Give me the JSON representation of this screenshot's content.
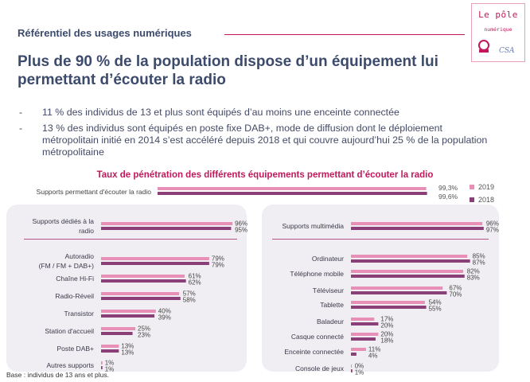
{
  "header": {
    "section": "Référentiel des usages numériques",
    "headline": "Plus de 90 % de la population dispose d’un équipement lui permettant d’écouter la radio"
  },
  "logo": {
    "title": "Le pôle",
    "subtitle": "numérique",
    "partner_a": "arcep",
    "partner_b": "CSA"
  },
  "bullets": [
    "11 % des individus de 13 et plus sont équipés d’au moins une enceinte connectée",
    "13 % des individus sont équipés en poste fixe DAB+, mode de diffusion dont le déploiement métropolitain initié en 2014 s’est accéléré depuis 2018 et qui couvre aujourd’hui 25 % de la population métropolitaine"
  ],
  "footnote": "Base : individus de 13 ans et plus.",
  "colors": {
    "y2019": "#e88fb8",
    "y2018": "#8b3f79",
    "accent": "#c2185b",
    "panel": "#f0eef2"
  },
  "chart_data": {
    "type": "bar",
    "orientation": "horizontal",
    "title": "Taux de pénétration des différents équipements permettant d’écouter la radio",
    "legend": [
      "2019",
      "2018"
    ],
    "series_names": [
      "2019",
      "2018"
    ],
    "top": {
      "label": "Supports permettant d'écouter la radio",
      "v2019": 99.3,
      "v2018": 99.6,
      "t2019": "99,3%",
      "t2018": "99,6%"
    },
    "left": [
      {
        "label": [
          "Supports dédiés à la",
          "radio"
        ],
        "v2019": 96,
        "v2018": 95
      },
      {
        "label": [
          "Autoradio",
          "(FM / FM + DAB+)"
        ],
        "v2019": 79,
        "v2018": 79
      },
      {
        "label": [
          "Chaîne Hi-Fi"
        ],
        "v2019": 61,
        "v2018": 62
      },
      {
        "label": [
          "Radio-Réveil"
        ],
        "v2019": 57,
        "v2018": 58
      },
      {
        "label": [
          "Transistor"
        ],
        "v2019": 40,
        "v2018": 39
      },
      {
        "label": [
          "Station d'accueil"
        ],
        "v2019": 25,
        "v2018": 23
      },
      {
        "label": [
          "Poste DAB+"
        ],
        "v2019": 13,
        "v2018": 13
      },
      {
        "label": [
          "Autres supports"
        ],
        "v2019": 1,
        "v2018": 1
      }
    ],
    "right": [
      {
        "label": [
          "Supports multimédia"
        ],
        "v2019": 96,
        "v2018": 97
      },
      {
        "label": [
          "Ordinateur"
        ],
        "v2019": 85,
        "v2018": 87
      },
      {
        "label": [
          "Téléphone mobile"
        ],
        "v2019": 82,
        "v2018": 83
      },
      {
        "label": [
          "Téléviseur"
        ],
        "v2019": 67,
        "v2018": 70
      },
      {
        "label": [
          "Tablette"
        ],
        "v2019": 54,
        "v2018": 55
      },
      {
        "label": [
          "Baladeur"
        ],
        "v2019": 17,
        "v2018": 20
      },
      {
        "label": [
          "Casque connecté"
        ],
        "v2019": 20,
        "v2018": 18
      },
      {
        "label": [
          "Enceinte connectée"
        ],
        "v2019": 11,
        "v2018": 4
      },
      {
        "label": [
          "Console de jeux"
        ],
        "v2019": 0,
        "v2018": 1
      }
    ],
    "value_suffix": "%"
  }
}
